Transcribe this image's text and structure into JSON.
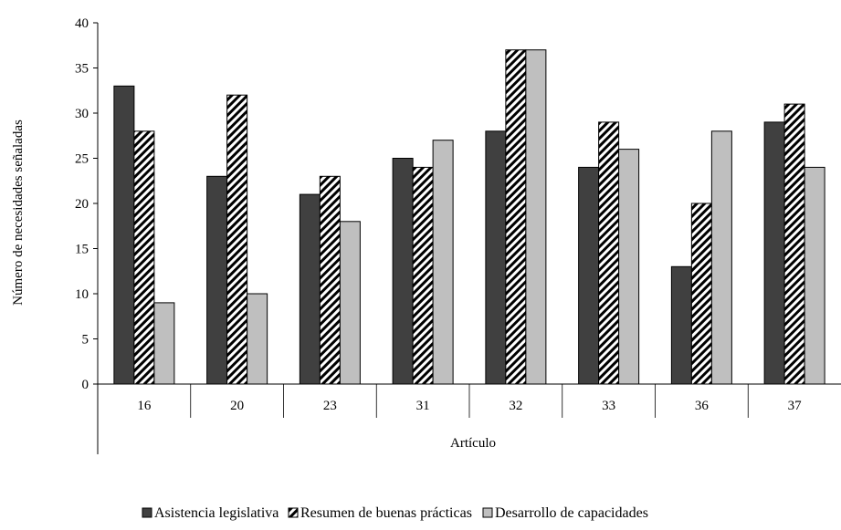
{
  "chart_data": {
    "type": "bar",
    "categories": [
      "16",
      "20",
      "23",
      "31",
      "32",
      "33",
      "36",
      "37"
    ],
    "series": [
      {
        "name": "Asistencia legislativa",
        "values": [
          33,
          23,
          21,
          25,
          28,
          24,
          13,
          29
        ]
      },
      {
        "name": "Resumen de buenas prácticas",
        "values": [
          28,
          32,
          23,
          24,
          37,
          29,
          20,
          31
        ]
      },
      {
        "name": "Desarrollo de capacidades",
        "values": [
          9,
          10,
          18,
          27,
          37,
          26,
          28,
          24
        ]
      }
    ],
    "xlabel": "Artículo",
    "ylabel": "Número de necesidades señaladas",
    "ylim": [
      0,
      40
    ],
    "yticks": [
      0,
      5,
      10,
      15,
      20,
      25,
      30,
      35,
      40
    ],
    "grid": false,
    "legend_position": "bottom",
    "colors": {
      "series_0": "#404040",
      "series_1_pattern": "diagonal-hatch-black-on-white",
      "series_2": "#bfbfbf"
    }
  }
}
